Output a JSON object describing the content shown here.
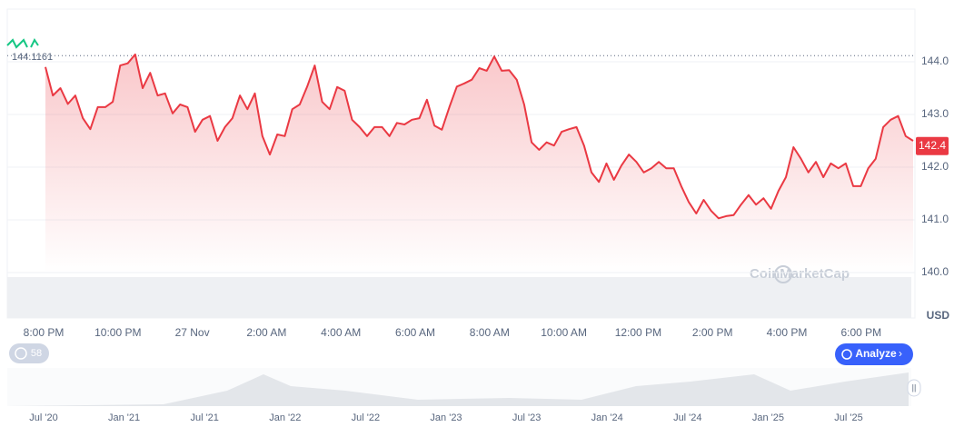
{
  "chart_data": {
    "type": "line",
    "x_labels": [
      "8:00 PM",
      "10:00 PM",
      "27 Nov",
      "2:00 AM",
      "4:00 AM",
      "6:00 AM",
      "8:00 AM",
      "10:00 AM",
      "12:00 PM",
      "2:00 PM",
      "4:00 PM",
      "6:00 PM"
    ],
    "series": [
      {
        "color": "#ea3943",
        "values": [
          143.9,
          143.36,
          143.5,
          143.2,
          143.36,
          142.93,
          142.72,
          143.14,
          143.14,
          143.24,
          143.93,
          143.97,
          144.14,
          143.5,
          143.79,
          143.36,
          143.4,
          143.02,
          143.19,
          143.14,
          142.67,
          142.9,
          142.97,
          142.5,
          142.76,
          142.93,
          143.36,
          143.1,
          143.4,
          142.59,
          142.24,
          142.62,
          142.59,
          143.1,
          143.19,
          143.53,
          143.93,
          143.24,
          143.1,
          143.52,
          143.45,
          142.9,
          142.76,
          142.59,
          142.76,
          142.76,
          142.59,
          142.84,
          142.81,
          142.9,
          142.93,
          143.28,
          142.79,
          142.71,
          143.14,
          143.53,
          143.59,
          143.66,
          143.88,
          143.83,
          144.1,
          143.83,
          143.84,
          143.66,
          143.19,
          142.47,
          142.33,
          142.47,
          142.41,
          142.67,
          142.72,
          142.76,
          142.41,
          141.9,
          141.72,
          142.07,
          141.76,
          142.03,
          142.24,
          142.1,
          141.9,
          141.98,
          142.1,
          141.98,
          141.98,
          141.64,
          141.34,
          141.12,
          141.38,
          141.17,
          141.03,
          141.07,
          141.09,
          141.29,
          141.47,
          141.29,
          141.41,
          141.21,
          141.55,
          141.81,
          142.38,
          142.16,
          141.9,
          142.1,
          141.81,
          142.07,
          141.98,
          142.07,
          141.64,
          141.64,
          141.98,
          142.16,
          142.76,
          142.9,
          142.97,
          142.59,
          142.5
        ]
      }
    ],
    "ylim": [
      140,
      145
    ],
    "yticks": [
      {
        "value": 140,
        "label": "140.0"
      },
      {
        "value": 141,
        "label": "141.0"
      },
      {
        "value": 142,
        "label": "142.0"
      },
      {
        "value": 143,
        "label": "143.0"
      },
      {
        "value": 144,
        "label": "144.0"
      }
    ],
    "y_unit": "USD",
    "high_line": 144.1161,
    "current_price": 142.4,
    "watermark": "CoinMarketCap",
    "button": "Analyze",
    "badge": "58",
    "navigator_labels": [
      "Jul '20",
      "Jan '21",
      "Jul '21",
      "Jan '22",
      "Jul '22",
      "Jan '23",
      "Jul '23",
      "Jan '24",
      "Jul '24",
      "Jan '25",
      "Jul '25"
    ]
  }
}
